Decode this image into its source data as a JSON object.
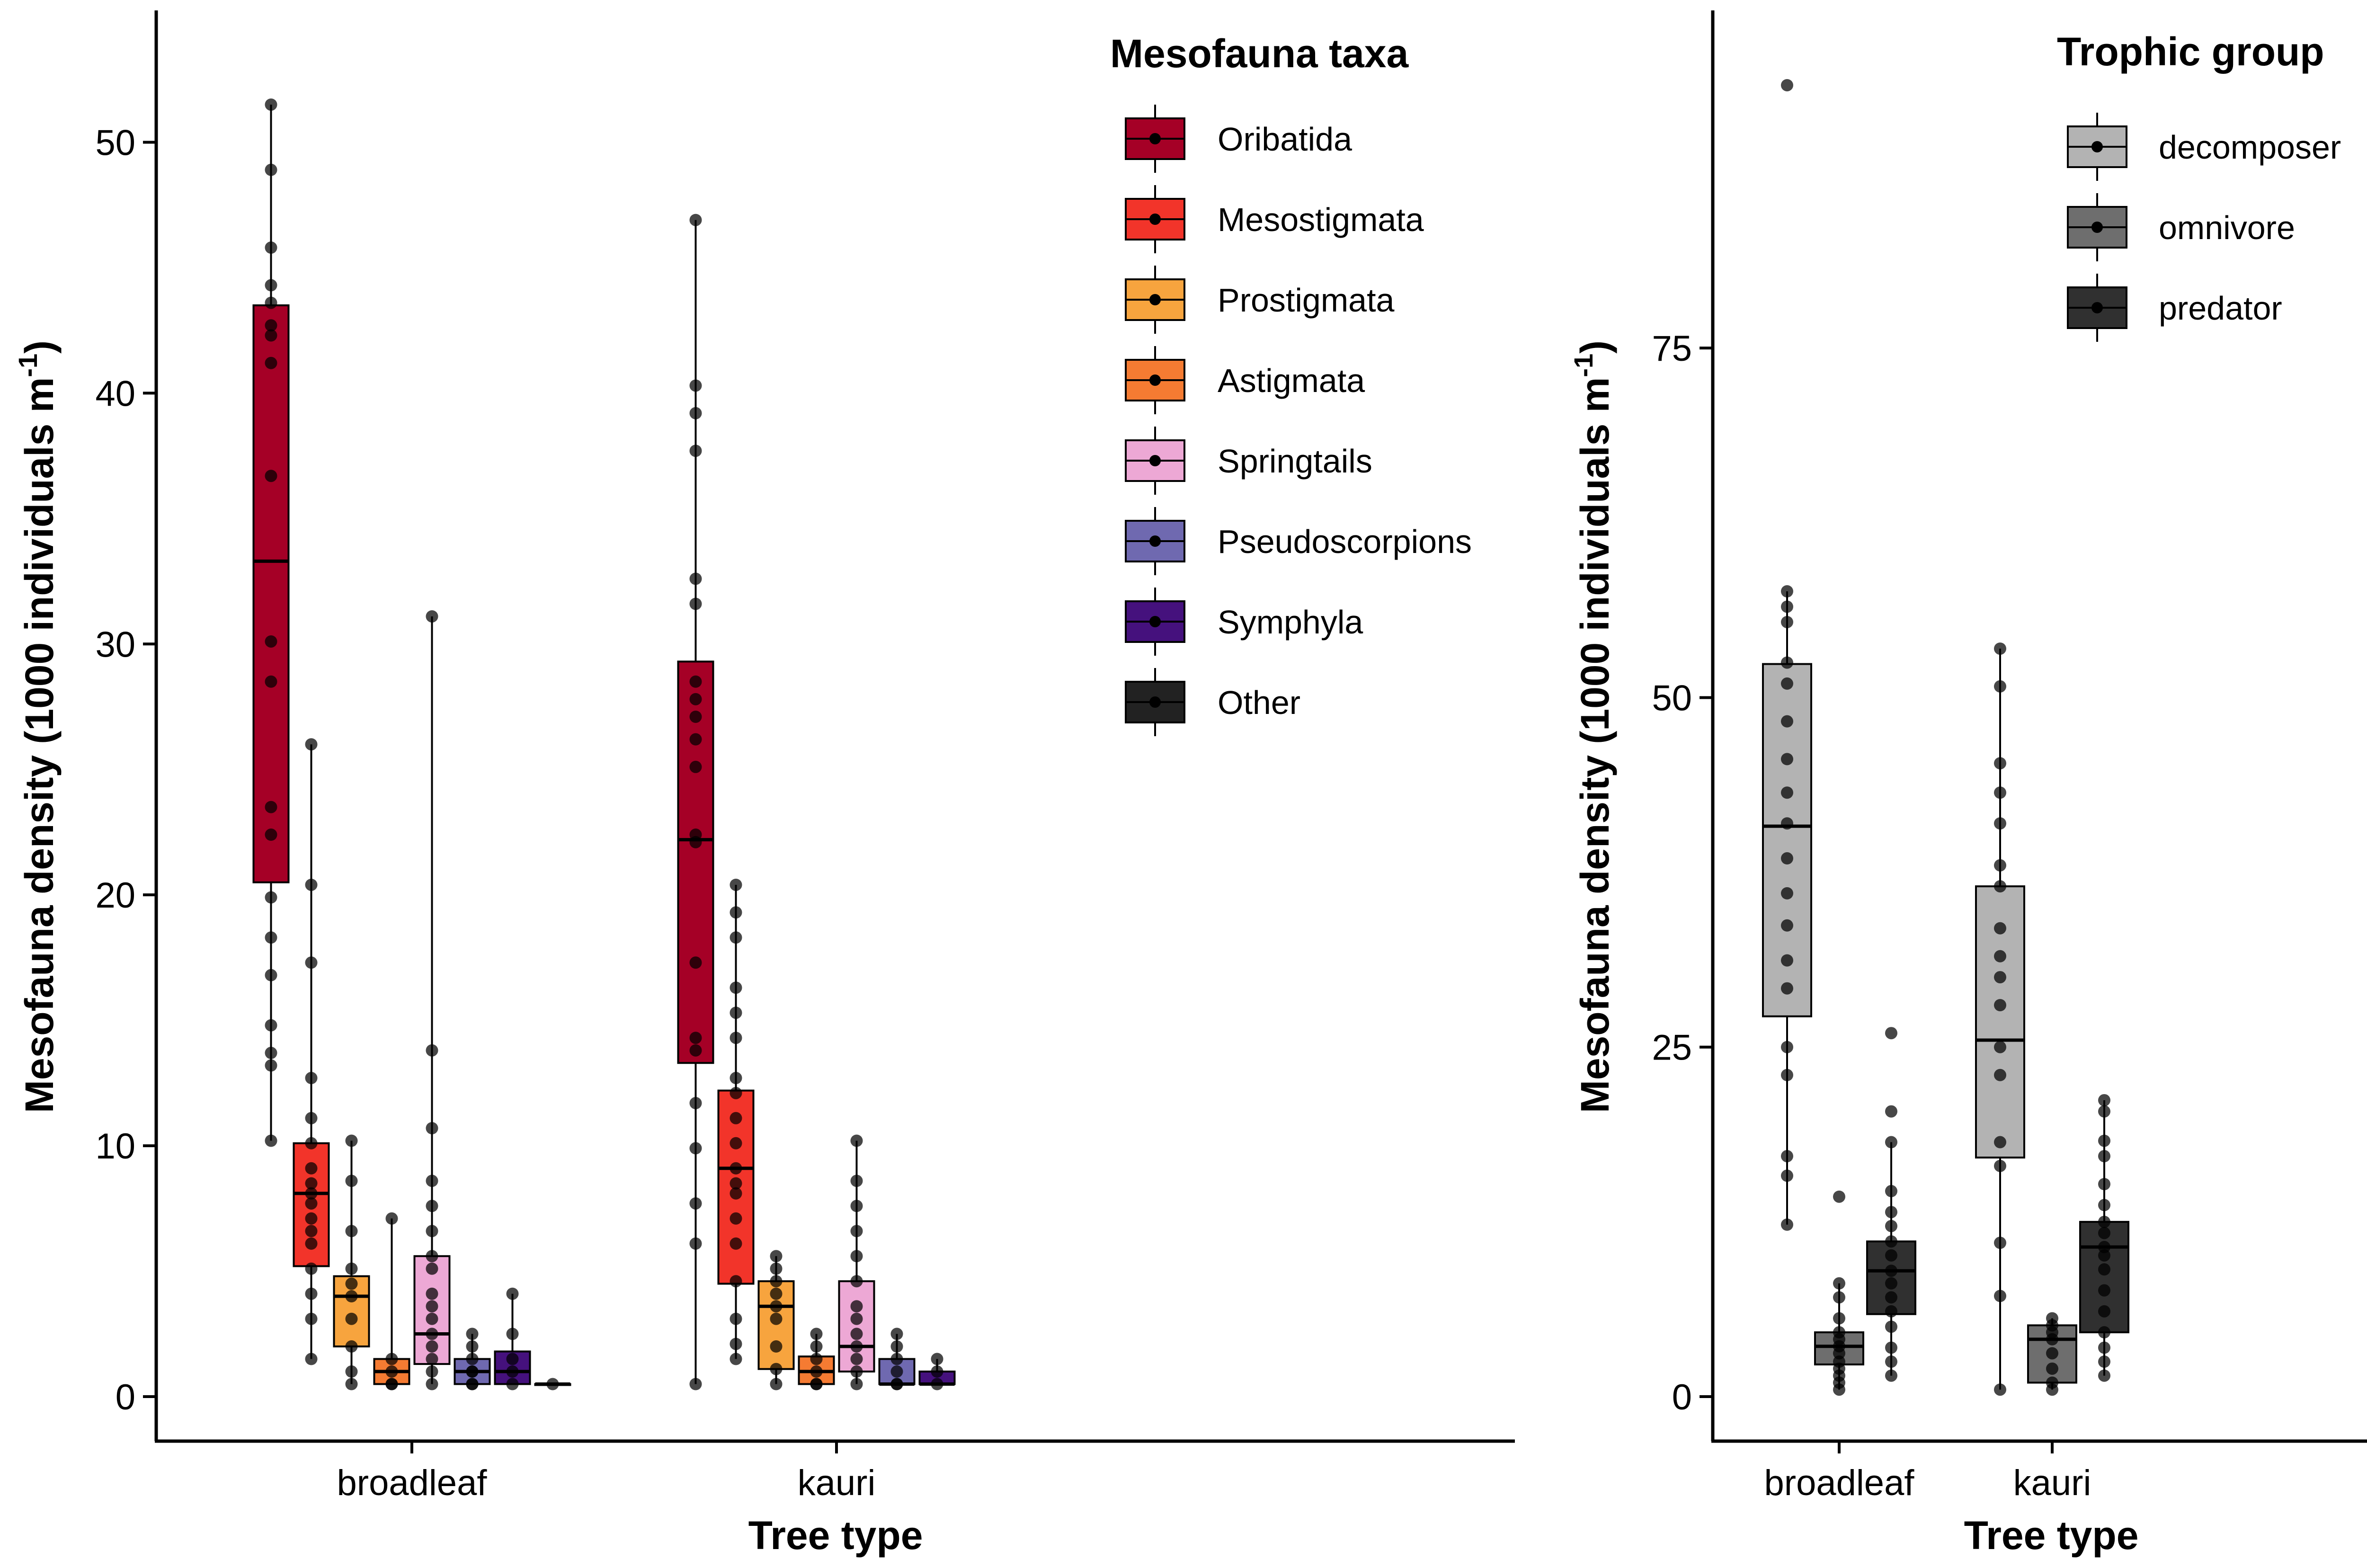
{
  "chart_data": [
    {
      "type": "boxplot",
      "xlabel": "Tree type",
      "ylabel": "Mesofauna density (1000 individuals m",
      "ylabel_superscript": "-1",
      "ylabel_suffix": ")",
      "ylim": [
        0,
        53.5
      ],
      "yticks": [
        "0",
        "10",
        "20",
        "30",
        "40",
        "50"
      ],
      "categories": [
        "broadleaf",
        "kauri"
      ],
      "legend": {
        "title": "Mesofauna taxa",
        "items": [
          {
            "name": "Oribatida",
            "color": "#A50026"
          },
          {
            "name": "Mesostigmata",
            "color": "#F2342A"
          },
          {
            "name": "Prostigmata",
            "color": "#F7A43E"
          },
          {
            "name": "Astigmata",
            "color": "#F57B32"
          },
          {
            "name": "Springtails",
            "color": "#EDA8D5"
          },
          {
            "name": "Pseudoscorpions",
            "color": "#6F69B0"
          },
          {
            "name": "Symphyla",
            "color": "#45117D"
          },
          {
            "name": "Other",
            "color": "#222222"
          }
        ]
      },
      "series": [
        {
          "name": "Oribatida",
          "boxes": [
            {
              "category": "broadleaf",
              "min": 10.2,
              "q1": 20.5,
              "median": 33.3,
              "q3": 43.5,
              "max": 51.5,
              "points": [
                10.2,
                13.2,
                13.7,
                14.8,
                16.8,
                18.3,
                19.9,
                22.4,
                23.5,
                28.5,
                30.1,
                36.7,
                41.2,
                42.3,
                42.7,
                43.6,
                44.3,
                45.8,
                48.9,
                51.5
              ]
            },
            {
              "category": "kauri",
              "min": 0.5,
              "q1": 13.3,
              "median": 22.2,
              "q3": 29.3,
              "max": 46.9,
              "points": [
                0.5,
                6.1,
                7.7,
                9.9,
                11.7,
                13.8,
                14.3,
                17.3,
                22.1,
                22.4,
                25.1,
                26.2,
                27.1,
                27.8,
                28.5,
                31.6,
                32.6,
                37.7,
                39.2,
                40.3,
                46.9
              ]
            }
          ]
        },
        {
          "name": "Mesostigmata",
          "boxes": [
            {
              "category": "broadleaf",
              "min": 1.5,
              "q1": 5.2,
              "median": 8.1,
              "q3": 10.1,
              "max": 26.0,
              "points": [
                1.5,
                3.1,
                4.1,
                5.1,
                6.1,
                6.6,
                7.1,
                7.7,
                8.1,
                8.5,
                9.1,
                10.1,
                11.1,
                12.7,
                17.3,
                20.4,
                26.0
              ]
            },
            {
              "category": "kauri",
              "min": 1.5,
              "q1": 4.5,
              "median": 9.1,
              "q3": 12.2,
              "max": 20.4,
              "points": [
                1.5,
                2.1,
                3.1,
                4.6,
                6.1,
                7.1,
                8.1,
                8.5,
                9.1,
                10.1,
                11.1,
                12.1,
                12.7,
                14.3,
                15.3,
                16.3,
                18.3,
                19.3,
                20.4
              ]
            }
          ]
        },
        {
          "name": "Prostigmata",
          "boxes": [
            {
              "category": "broadleaf",
              "min": 0.5,
              "q1": 2.0,
              "median": 4.0,
              "q3": 4.8,
              "max": 10.2,
              "points": [
                0.5,
                1.0,
                2.0,
                3.1,
                4.0,
                4.5,
                5.1,
                6.6,
                8.6,
                10.2
              ]
            },
            {
              "category": "kauri",
              "min": 0.5,
              "q1": 1.1,
              "median": 3.6,
              "q3": 4.6,
              "max": 5.6,
              "points": [
                0.5,
                1.1,
                2.0,
                3.1,
                3.6,
                4.1,
                4.6,
                5.1,
                5.6
              ]
            }
          ]
        },
        {
          "name": "Astigmata",
          "boxes": [
            {
              "category": "broadleaf",
              "min": 0.5,
              "q1": 0.5,
              "median": 1.0,
              "q3": 1.5,
              "max": 7.1,
              "points": [
                0.5,
                0.5,
                1.0,
                1.5,
                7.1
              ]
            },
            {
              "category": "kauri",
              "min": 0.5,
              "q1": 0.5,
              "median": 1.0,
              "q3": 1.6,
              "max": 2.5,
              "points": [
                0.5,
                0.5,
                1.0,
                1.5,
                2.0,
                2.5
              ]
            }
          ]
        },
        {
          "name": "Springtails",
          "boxes": [
            {
              "category": "broadleaf",
              "min": 0.5,
              "q1": 1.3,
              "median": 2.5,
              "q3": 5.6,
              "max": 31.1,
              "points": [
                0.5,
                1.0,
                1.5,
                2.0,
                2.5,
                3.1,
                3.6,
                4.1,
                5.1,
                5.6,
                6.6,
                7.6,
                8.6,
                10.7,
                13.8,
                31.1
              ]
            },
            {
              "category": "kauri",
              "min": 0.5,
              "q1": 1.0,
              "median": 2.0,
              "q3": 4.6,
              "max": 10.2,
              "points": [
                0.5,
                1.0,
                1.5,
                2.0,
                2.5,
                3.1,
                3.6,
                4.6,
                5.6,
                6.6,
                7.6,
                8.6,
                10.2
              ]
            }
          ]
        },
        {
          "name": "Pseudoscorpions",
          "boxes": [
            {
              "category": "broadleaf",
              "min": 0.5,
              "q1": 0.5,
              "median": 1.0,
              "q3": 1.5,
              "max": 2.5,
              "points": [
                0.5,
                0.5,
                1.0,
                1.0,
                1.5,
                2.0,
                2.5
              ]
            },
            {
              "category": "kauri",
              "min": 0.5,
              "q1": 0.5,
              "median": 0.5,
              "q3": 1.5,
              "max": 2.5,
              "points": [
                0.5,
                0.5,
                1.0,
                1.5,
                2.0,
                2.5
              ]
            }
          ]
        },
        {
          "name": "Symphyla",
          "boxes": [
            {
              "category": "broadleaf",
              "min": 0.5,
              "q1": 0.5,
              "median": 1.0,
              "q3": 1.8,
              "max": 4.1,
              "points": [
                0.5,
                1.0,
                1.5,
                2.5,
                4.1
              ]
            },
            {
              "category": "kauri",
              "min": 0.5,
              "q1": 0.5,
              "median": 0.5,
              "q3": 1.0,
              "max": 1.5,
              "points": [
                0.5,
                1.0,
                1.5
              ]
            }
          ]
        },
        {
          "name": "Other",
          "boxes": [
            {
              "category": "broadleaf",
              "min": 0.5,
              "q1": 0.5,
              "median": 0.5,
              "q3": 0.5,
              "max": 0.5,
              "points": [
                0.5
              ]
            }
          ]
        }
      ]
    },
    {
      "type": "boxplot",
      "xlabel": "Tree type",
      "ylabel": "Mesofauna density (1000 individuals m",
      "ylabel_superscript": "-1",
      "ylabel_suffix": ")",
      "ylim": [
        0,
        96
      ],
      "yticks": [
        "0",
        "25",
        "50",
        "75"
      ],
      "categories": [
        "broadleaf",
        "kauri"
      ],
      "legend": {
        "title": "Trophic group",
        "items": [
          {
            "name": "decomposer",
            "color": "#B3B3B3"
          },
          {
            "name": "omnivore",
            "color": "#6E6E6E"
          },
          {
            "name": "predator",
            "color": "#303030"
          }
        ]
      },
      "series": [
        {
          "name": "decomposer",
          "boxes": [
            {
              "category": "broadleaf",
              "min": 12.3,
              "q1": 27.2,
              "median": 40.8,
              "q3": 52.4,
              "max": 57.6,
              "points": [
                12.3,
                15.8,
                17.2,
                23.0,
                25.0,
                29.2,
                31.2,
                33.7,
                36.0,
                38.5,
                41.0,
                43.2,
                45.6,
                48.3,
                51.0,
                52.5,
                55.4,
                56.5,
                57.6,
                93.8
              ]
            },
            {
              "category": "kauri",
              "min": 0.5,
              "q1": 17.1,
              "median": 25.5,
              "q3": 36.5,
              "max": 53.5,
              "points": [
                0.5,
                7.2,
                11.0,
                16.5,
                18.2,
                23.0,
                25.0,
                28.0,
                30.0,
                31.5,
                33.5,
                36.5,
                38.0,
                41.0,
                43.2,
                45.3,
                50.8,
                53.5
              ]
            }
          ]
        },
        {
          "name": "omnivore",
          "boxes": [
            {
              "category": "broadleaf",
              "min": 0.5,
              "q1": 2.3,
              "median": 3.6,
              "q3": 4.6,
              "max": 8.1,
              "points": [
                0.5,
                1.0,
                1.5,
                2.0,
                2.5,
                3.1,
                3.6,
                4.1,
                4.6,
                5.6,
                7.1,
                8.1,
                14.3
              ]
            },
            {
              "category": "kauri",
              "min": 0.5,
              "q1": 1.0,
              "median": 4.1,
              "q3": 5.1,
              "max": 5.6,
              "points": [
                0.5,
                1.0,
                2.0,
                3.1,
                4.1,
                4.6,
                5.1,
                5.6
              ]
            }
          ]
        },
        {
          "name": "predator",
          "boxes": [
            {
              "category": "broadleaf",
              "min": 1.5,
              "q1": 5.9,
              "median": 9.0,
              "q3": 11.1,
              "max": 18.2,
              "points": [
                1.5,
                2.5,
                3.5,
                5.0,
                6.1,
                7.1,
                8.1,
                9.0,
                10.1,
                11.1,
                12.2,
                13.2,
                14.7,
                18.2,
                20.4,
                26.0
              ]
            },
            {
              "category": "kauri",
              "min": 1.5,
              "q1": 4.6,
              "median": 10.7,
              "q3": 12.5,
              "max": 21.2,
              "points": [
                1.5,
                2.5,
                3.5,
                4.6,
                6.1,
                7.6,
                9.1,
                10.1,
                10.7,
                11.7,
                12.5,
                13.7,
                15.2,
                17.2,
                18.3,
                20.4,
                21.2
              ]
            }
          ]
        }
      ]
    }
  ]
}
